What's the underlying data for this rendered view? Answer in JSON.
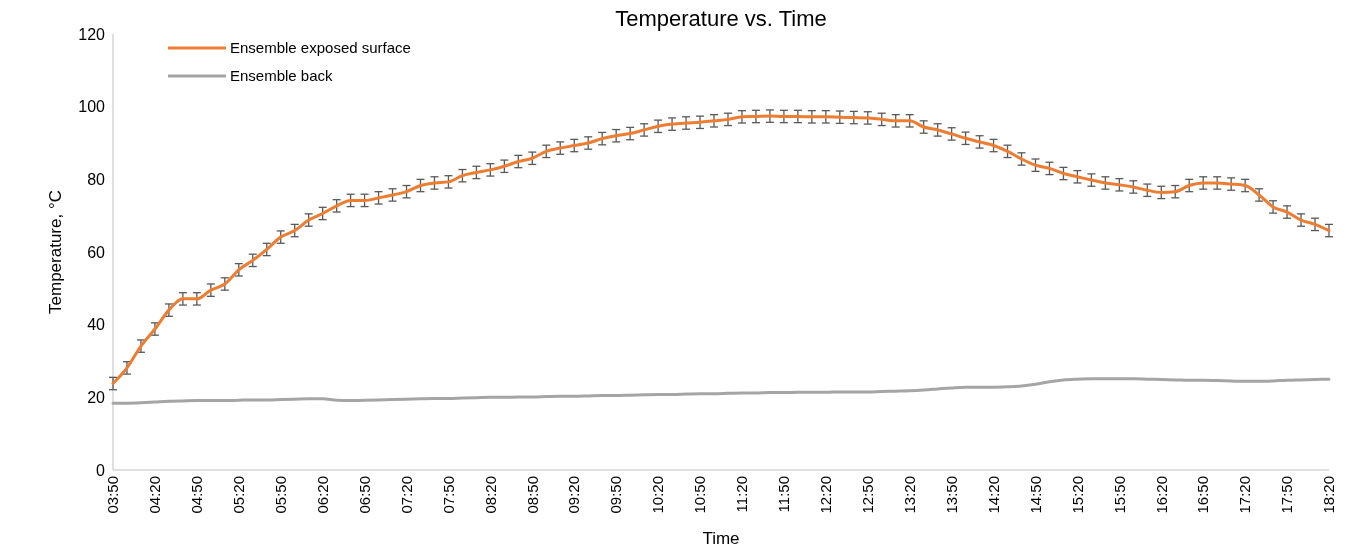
{
  "chart_data": {
    "type": "line",
    "title": "Temperature vs. Time",
    "xlabel": "Time",
    "ylabel": "Temperature, °C",
    "categories": [
      "03:50",
      null,
      null,
      "04:20",
      null,
      null,
      "04:50",
      null,
      null,
      "05:20",
      null,
      null,
      "05:50",
      null,
      null,
      "06:20",
      null,
      null,
      "06:50",
      null,
      null,
      "07:20",
      null,
      null,
      "07:50",
      null,
      null,
      "08:20",
      null,
      null,
      "08:50",
      null,
      null,
      "09:20",
      null,
      null,
      "09:50",
      null,
      null,
      "10:20",
      null,
      null,
      "10:50",
      null,
      null,
      "11:20",
      null,
      null,
      "11:50",
      null,
      null,
      "12:20",
      null,
      null,
      "12:50",
      null,
      null,
      "13:20",
      null,
      null,
      "13:50",
      null,
      null,
      "14:20",
      null,
      null,
      "14:50",
      null,
      null,
      "15:20",
      null,
      null,
      "15:50",
      null,
      null,
      "16:20",
      null,
      null,
      "16:50",
      null,
      null,
      "17:20",
      null,
      null,
      "17:50",
      null,
      null,
      "18:20"
    ],
    "series": [
      {
        "name": "Ensemble exposed surface",
        "color": "#ed7d31",
        "values": [
          23.8,
          28.1,
          34.1,
          38.8,
          44.0,
          47.1,
          47.1,
          49.5,
          51.2,
          55.1,
          57.7,
          60.7,
          64.1,
          65.9,
          68.8,
          70.6,
          72.7,
          74.2,
          74.2,
          74.9,
          75.7,
          76.6,
          78.3,
          79.0,
          79.3,
          81.0,
          81.9,
          82.6,
          83.6,
          84.9,
          85.8,
          87.7,
          88.6,
          89.3,
          90.0,
          91.2,
          92.0,
          92.6,
          93.6,
          94.6,
          95.2,
          95.5,
          95.7,
          96.1,
          96.5,
          97.2,
          97.3,
          97.4,
          97.3,
          97.3,
          97.2,
          97.2,
          97.1,
          97.0,
          96.9,
          96.5,
          96.1,
          96.1,
          94.4,
          93.6,
          92.5,
          91.3,
          90.3,
          89.3,
          87.7,
          85.6,
          83.9,
          83.0,
          81.6,
          80.7,
          79.8,
          79.0,
          78.5,
          77.9,
          77.0,
          76.4,
          76.6,
          78.3,
          79.0,
          79.0,
          78.7,
          78.3,
          75.7,
          72.4,
          71.0,
          68.8,
          67.6,
          65.9
        ],
        "errors": [
          1.7,
          1.7,
          1.7,
          1.7,
          1.7,
          1.7,
          1.7,
          1.7,
          1.7,
          1.7,
          1.7,
          1.7,
          1.7,
          1.7,
          1.7,
          1.7,
          1.7,
          1.7,
          1.7,
          1.7,
          1.7,
          1.7,
          1.7,
          1.7,
          1.7,
          1.7,
          1.7,
          1.7,
          1.7,
          1.7,
          1.7,
          1.7,
          1.7,
          1.7,
          1.7,
          1.7,
          1.7,
          1.7,
          1.7,
          1.7,
          1.7,
          1.7,
          1.7,
          1.7,
          1.7,
          1.7,
          1.7,
          1.7,
          1.7,
          1.7,
          1.7,
          1.7,
          1.7,
          1.7,
          1.7,
          1.7,
          1.7,
          1.7,
          1.7,
          1.7,
          1.7,
          1.7,
          1.7,
          1.7,
          1.7,
          1.7,
          1.7,
          1.7,
          1.7,
          1.7,
          1.7,
          1.7,
          1.7,
          1.7,
          1.7,
          1.7,
          1.7,
          1.7,
          1.7,
          1.7,
          1.7,
          1.7,
          1.7,
          1.7,
          1.7,
          1.7,
          1.7,
          1.7
        ]
      },
      {
        "name": "Ensemble back",
        "color": "#a5a5a5",
        "values": [
          18.4,
          18.4,
          18.5,
          18.7,
          18.9,
          19.0,
          19.1,
          19.1,
          19.1,
          19.2,
          19.3,
          19.3,
          19.4,
          19.5,
          19.6,
          19.6,
          19.2,
          19.1,
          19.2,
          19.3,
          19.4,
          19.5,
          19.6,
          19.7,
          19.7,
          19.8,
          19.9,
          20.0,
          20.0,
          20.1,
          20.1,
          20.2,
          20.3,
          20.3,
          20.4,
          20.5,
          20.5,
          20.6,
          20.7,
          20.8,
          20.8,
          20.9,
          21.0,
          21.0,
          21.1,
          21.2,
          21.2,
          21.3,
          21.3,
          21.4,
          21.4,
          21.4,
          21.5,
          21.5,
          21.5,
          21.6,
          21.7,
          21.8,
          22.0,
          22.3,
          22.6,
          22.8,
          22.8,
          22.8,
          22.9,
          23.1,
          23.6,
          24.3,
          24.8,
          25.0,
          25.1,
          25.1,
          25.1,
          25.1,
          25.0,
          24.9,
          24.8,
          24.7,
          24.7,
          24.6,
          24.5,
          24.4,
          24.4,
          24.5,
          24.7,
          24.8,
          24.9,
          25.0
        ]
      }
    ],
    "ylim": [
      0,
      120
    ],
    "yticks": [
      0,
      20,
      40,
      60,
      80,
      100,
      120
    ],
    "legend": "top left"
  }
}
